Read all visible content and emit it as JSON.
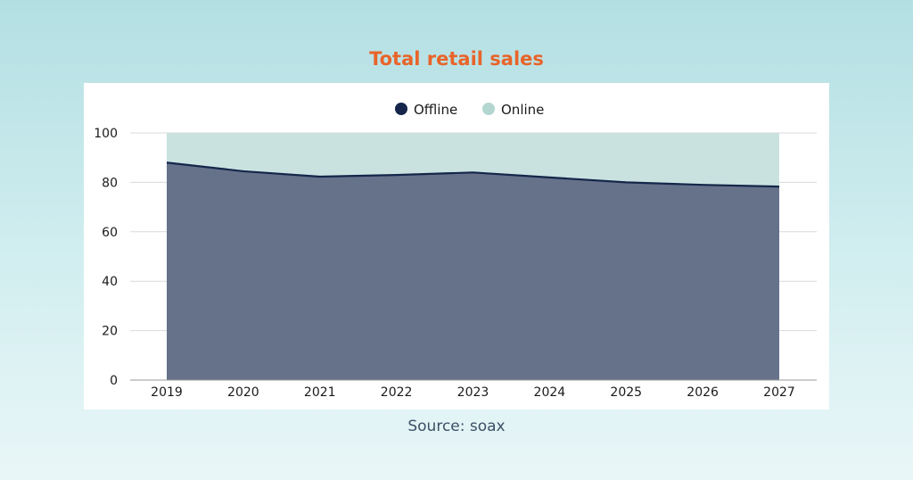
{
  "page": {
    "title": "Total retail sales",
    "source": "Source: soax"
  },
  "colors": {
    "title": "#e8642a",
    "offline_fill": "#66728a",
    "offline_line": "#15264a",
    "online_fill": "#c9e2e0",
    "legend_offline": "#15264a",
    "legend_online": "#b3d6d1",
    "grid": "#d9d9d9",
    "text": "#1a1a1a"
  },
  "chart_data": {
    "type": "area",
    "stacked": true,
    "x": [
      "2019",
      "2020",
      "2021",
      "2022",
      "2023",
      "2024",
      "2025",
      "2026",
      "2027"
    ],
    "series": [
      {
        "name": "Offline",
        "values": [
          88,
          84.5,
          82.3,
          83,
          84,
          82,
          80,
          79,
          78.3
        ]
      },
      {
        "name": "Online",
        "values": [
          12,
          15.5,
          17.7,
          17,
          16,
          18,
          20,
          21,
          21.7
        ]
      }
    ],
    "ylim": [
      0,
      100
    ],
    "yticks": [
      0,
      20,
      40,
      60,
      80,
      100
    ],
    "grid": "horizontal",
    "legend_position": "top-center"
  }
}
